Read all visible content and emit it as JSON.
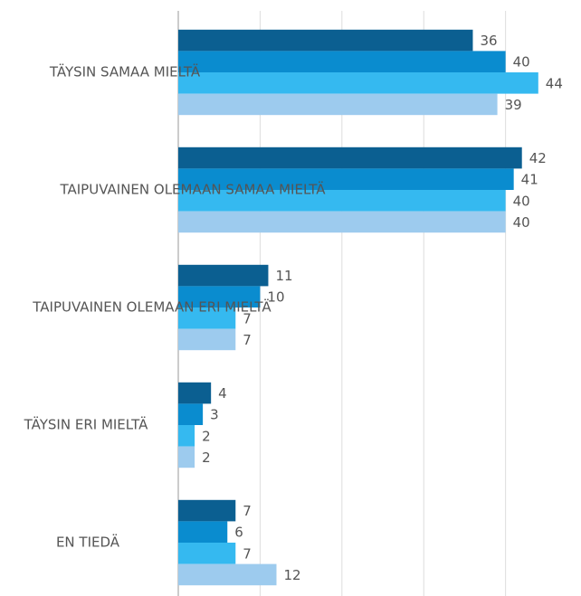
{
  "chart_data": {
    "type": "hbar",
    "categories": [
      "TÄYSIN SAMAA MIELTÄ",
      "TAIPUVAINEN OLEMAAN SAMAA MIELTÄ",
      "TAIPUVAINEN OLEMAAN ERI MIELTÄ",
      "TÄYSIN ERI MIELTÄ",
      "EN TIEDÄ"
    ],
    "series": [
      {
        "color": "#0b5f91",
        "values": [
          36,
          42,
          11,
          4,
          7
        ]
      },
      {
        "color": "#0a8ccf",
        "values": [
          40,
          41,
          10,
          3,
          6
        ]
      },
      {
        "color": "#35b9f0",
        "values": [
          44,
          40,
          7,
          2,
          7
        ]
      },
      {
        "color": "#9dcbee",
        "values": [
          39,
          40,
          7,
          2,
          12
        ]
      }
    ],
    "xlim": [
      0,
      49
    ],
    "xticks": [
      0,
      10,
      20,
      30,
      40
    ],
    "grid": true
  }
}
